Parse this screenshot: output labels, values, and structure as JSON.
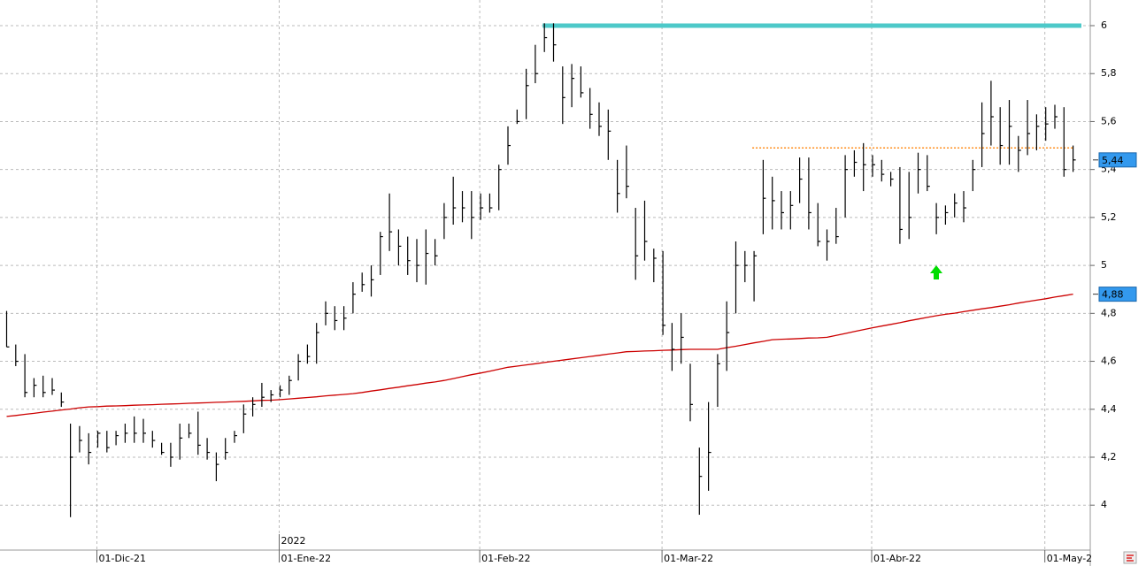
{
  "chart_data": {
    "type": "ohlc",
    "categories": [
      null,
      null,
      null,
      null,
      null,
      null,
      null,
      null,
      null,
      null,
      "01-Dic-21",
      null,
      null,
      null,
      null,
      null,
      null,
      null,
      null,
      null,
      null,
      null,
      null,
      null,
      null,
      null,
      null,
      null,
      null,
      null,
      "01-Ene-22",
      null,
      null,
      null,
      null,
      null,
      null,
      null,
      null,
      null,
      null,
      null,
      null,
      null,
      null,
      null,
      null,
      null,
      null,
      null,
      null,
      null,
      "01-Feb-22",
      null,
      null,
      null,
      null,
      null,
      null,
      null,
      null,
      null,
      null,
      null,
      null,
      null,
      null,
      null,
      null,
      null,
      null,
      null,
      "01-Mar-22",
      null,
      null,
      null,
      null,
      null,
      null,
      null,
      null,
      null,
      null,
      null,
      null,
      null,
      null,
      null,
      null,
      null,
      null,
      null,
      null,
      null,
      null,
      "01-Abr-22",
      null,
      null,
      null,
      null,
      null,
      null,
      null,
      null,
      null,
      null,
      null,
      null,
      null,
      null,
      null,
      null,
      null,
      null,
      "01-May-2",
      null,
      null,
      null
    ],
    "year_label": "2022",
    "high": [
      4.81,
      4.67,
      4.63,
      4.53,
      4.54,
      4.53,
      4.47,
      4.34,
      4.33,
      4.3,
      4.31,
      4.31,
      4.31,
      4.34,
      4.37,
      4.36,
      4.31,
      4.26,
      4.26,
      4.34,
      4.34,
      4.39,
      4.28,
      4.22,
      4.28,
      4.31,
      4.42,
      4.45,
      4.51,
      4.48,
      4.5,
      4.54,
      4.63,
      4.67,
      4.76,
      4.85,
      4.83,
      4.83,
      4.93,
      4.97,
      5.0,
      5.14,
      5.3,
      5.15,
      5.12,
      5.11,
      5.15,
      5.11,
      5.26,
      5.37,
      5.31,
      5.31,
      5.3,
      5.3,
      5.42,
      5.58,
      5.65,
      5.82,
      5.92,
      6.01,
      6.01,
      5.83,
      5.84,
      5.83,
      5.74,
      5.68,
      5.65,
      5.44,
      5.5,
      5.24,
      5.27,
      5.07,
      5.06,
      4.76,
      4.8,
      4.59,
      4.24,
      4.43,
      4.63,
      4.85,
      5.1,
      5.06,
      5.06,
      5.44,
      5.37,
      5.31,
      5.31,
      5.45,
      5.45,
      5.26,
      5.15,
      5.24,
      5.46,
      5.48,
      5.51,
      5.46,
      5.44,
      5.39,
      5.41,
      5.39,
      5.47,
      5.46,
      5.26,
      5.25,
      5.3,
      5.31,
      5.44,
      5.68,
      5.77,
      5.66,
      5.69,
      5.54,
      5.69,
      5.63,
      5.66,
      5.67,
      5.66,
      5.5
    ],
    "low": [
      4.66,
      4.58,
      4.45,
      4.45,
      4.45,
      4.46,
      4.41,
      3.95,
      4.22,
      4.17,
      4.24,
      4.22,
      4.25,
      4.26,
      4.26,
      4.26,
      4.24,
      4.21,
      4.16,
      4.19,
      4.28,
      4.21,
      4.19,
      4.1,
      4.19,
      4.26,
      4.3,
      4.37,
      4.41,
      4.43,
      4.45,
      4.46,
      4.52,
      4.59,
      4.59,
      4.75,
      4.73,
      4.73,
      4.8,
      4.89,
      4.87,
      4.96,
      5.06,
      5.0,
      4.96,
      4.93,
      4.92,
      5.0,
      5.11,
      5.17,
      5.18,
      5.11,
      5.19,
      5.22,
      5.23,
      5.42,
      5.59,
      5.61,
      5.76,
      5.89,
      5.85,
      5.59,
      5.66,
      5.7,
      5.57,
      5.54,
      5.44,
      5.22,
      5.28,
      4.94,
      5.02,
      4.93,
      4.71,
      4.56,
      4.59,
      4.35,
      3.96,
      4.06,
      4.41,
      4.56,
      4.8,
      4.93,
      4.85,
      5.13,
      5.15,
      5.15,
      5.15,
      5.26,
      5.15,
      5.08,
      5.02,
      5.09,
      5.2,
      5.37,
      5.31,
      5.37,
      5.35,
      5.33,
      5.09,
      5.11,
      5.3,
      5.31,
      5.13,
      5.17,
      5.2,
      5.18,
      5.31,
      5.41,
      5.5,
      5.42,
      5.42,
      5.39,
      5.46,
      5.48,
      5.52,
      5.57,
      5.37,
      5.39
    ],
    "close": [
      4.66,
      4.6,
      4.47,
      4.5,
      4.47,
      4.48,
      4.43,
      4.2,
      4.27,
      4.22,
      4.3,
      4.24,
      4.29,
      4.3,
      4.3,
      4.3,
      4.27,
      4.22,
      4.2,
      4.28,
      4.3,
      4.25,
      4.22,
      4.17,
      4.22,
      4.29,
      4.38,
      4.42,
      4.45,
      4.46,
      4.48,
      4.52,
      4.6,
      4.62,
      4.72,
      4.8,
      4.77,
      4.78,
      4.88,
      4.92,
      4.94,
      5.12,
      5.14,
      5.08,
      5.02,
      5.0,
      5.05,
      5.04,
      5.2,
      5.24,
      5.24,
      5.2,
      5.24,
      5.24,
      5.4,
      5.5,
      5.6,
      5.75,
      5.8,
      5.95,
      5.92,
      5.7,
      5.78,
      5.72,
      5.63,
      5.58,
      5.56,
      5.3,
      5.33,
      5.04,
      5.1,
      5.03,
      4.75,
      4.65,
      4.7,
      4.42,
      4.12,
      4.22,
      4.59,
      4.72,
      5.0,
      5.0,
      5.04,
      5.28,
      5.27,
      5.22,
      5.25,
      5.36,
      5.22,
      5.1,
      5.1,
      5.12,
      5.4,
      5.43,
      5.42,
      5.42,
      5.38,
      5.36,
      5.15,
      5.2,
      5.4,
      5.33,
      5.2,
      5.22,
      5.26,
      5.24,
      5.4,
      5.55,
      5.62,
      5.5,
      5.58,
      5.48,
      5.55,
      5.58,
      5.59,
      5.62,
      5.4,
      5.44
    ],
    "bar_color": "#000000",
    "moving_average": {
      "color": "#cc0000",
      "values": [
        4.37,
        4.374,
        4.379,
        4.383,
        4.388,
        4.392,
        4.397,
        4.401,
        4.406,
        4.41,
        4.411,
        4.413,
        4.414,
        4.415,
        4.417,
        4.418,
        4.419,
        4.421,
        4.422,
        4.423,
        4.425,
        4.426,
        4.427,
        4.429,
        4.43,
        4.432,
        4.433,
        4.435,
        4.437,
        4.438,
        4.44,
        4.443,
        4.446,
        4.449,
        4.452,
        4.456,
        4.459,
        4.462,
        4.465,
        4.47,
        4.476,
        4.481,
        4.487,
        4.492,
        4.498,
        4.503,
        4.509,
        4.514,
        4.52,
        4.528,
        4.536,
        4.544,
        4.551,
        4.559,
        4.567,
        4.575,
        4.58,
        4.585,
        4.59,
        4.595,
        4.6,
        4.605,
        4.61,
        4.615,
        4.62,
        4.625,
        4.63,
        4.635,
        4.64,
        4.641,
        4.643,
        4.644,
        4.646,
        4.647,
        4.649,
        4.65,
        4.65,
        4.65,
        4.65,
        4.657,
        4.663,
        4.67,
        4.677,
        4.683,
        4.69,
        4.692,
        4.693,
        4.695,
        4.697,
        4.698,
        4.7,
        4.708,
        4.716,
        4.724,
        4.732,
        4.74,
        4.747,
        4.754,
        4.761,
        4.769,
        4.776,
        4.783,
        4.79,
        4.796,
        4.801,
        4.807,
        4.813,
        4.819,
        4.824,
        4.83,
        4.836,
        4.843,
        4.849,
        4.855,
        4.861,
        4.868,
        4.874,
        4.88
      ]
    },
    "levels": [
      {
        "value": 6.0,
        "color": "#4dc9c9",
        "style": "solid"
      },
      {
        "value": 5.49,
        "color": "#ff8c1a",
        "style": "dotted"
      }
    ],
    "price_tags": [
      {
        "value": 5.44,
        "label": "5,44"
      },
      {
        "value": 4.88,
        "label": "4,88"
      }
    ],
    "price_tag_color": "#3399ee",
    "ylim": [
      3.82,
      6.107
    ],
    "yticks": [
      4,
      {
        "value": 4.2,
        "label": "4,2"
      },
      {
        "value": 4.4,
        "label": "4,4"
      },
      {
        "value": 4.6,
        "label": "4,6"
      },
      {
        "value": 4.8,
        "label": "4,8"
      },
      5,
      {
        "value": 5.2,
        "label": "5,2"
      },
      {
        "value": 5.4,
        "label": "5,4"
      },
      {
        "value": 5.6,
        "label": "5,6"
      },
      {
        "value": 5.8,
        "label": "5,8"
      },
      6
    ],
    "grid": true
  }
}
